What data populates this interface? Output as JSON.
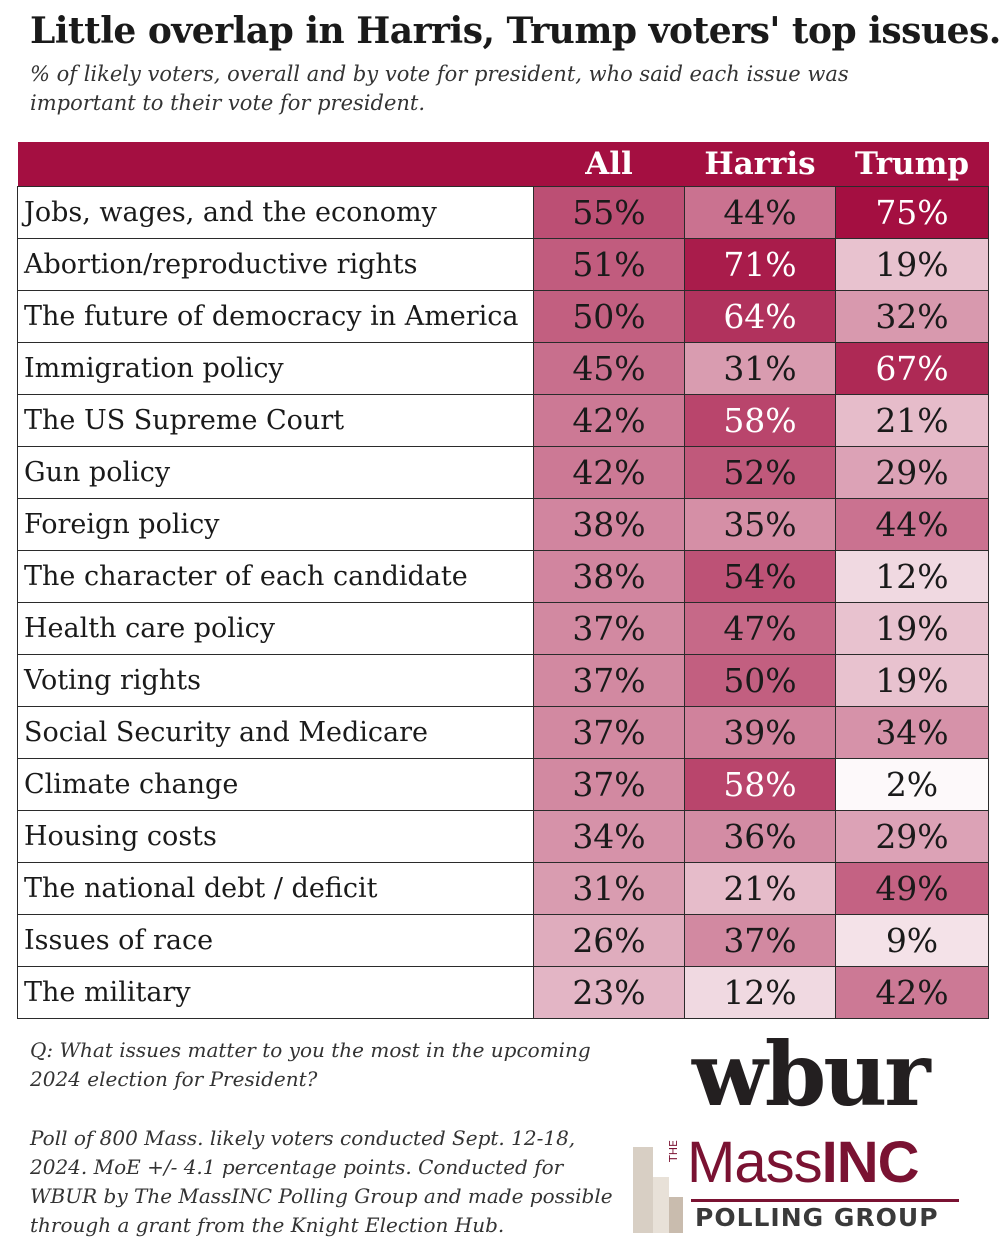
{
  "header": {
    "title": "Little overlap in Harris, Trump voters' top issues.",
    "subtitle": "% of likely voters, overall and by vote for president, who said each issue was important to their vote for president."
  },
  "chart_data": {
    "type": "table",
    "title": "Little overlap in Harris, Trump voters' top issues.",
    "subtitle": "% of likely voters, overall and by vote for president, who said each issue was important to their vote for president.",
    "columns": [
      "All",
      "Harris",
      "Trump"
    ],
    "rows": [
      {
        "issue": "Jobs, wages, and the economy",
        "values": [
          55,
          44,
          75
        ]
      },
      {
        "issue": "Abortion/reproductive rights",
        "values": [
          51,
          71,
          19
        ]
      },
      {
        "issue": "The future of democracy in America",
        "values": [
          50,
          64,
          32
        ]
      },
      {
        "issue": "Immigration policy",
        "values": [
          45,
          31,
          67
        ]
      },
      {
        "issue": "The US Supreme Court",
        "values": [
          42,
          58,
          21
        ]
      },
      {
        "issue": "Gun policy",
        "values": [
          42,
          52,
          29
        ]
      },
      {
        "issue": "Foreign policy",
        "values": [
          38,
          35,
          44
        ]
      },
      {
        "issue": "The character of each candidate",
        "values": [
          38,
          54,
          12
        ]
      },
      {
        "issue": "Health care policy",
        "values": [
          37,
          47,
          19
        ]
      },
      {
        "issue": "Voting rights",
        "values": [
          37,
          50,
          19
        ]
      },
      {
        "issue": "Social Security and Medicare",
        "values": [
          37,
          39,
          34
        ]
      },
      {
        "issue": "Climate change",
        "values": [
          37,
          58,
          2
        ]
      },
      {
        "issue": "Housing costs",
        "values": [
          34,
          36,
          29
        ]
      },
      {
        "issue": "The national debt / deficit",
        "values": [
          31,
          21,
          49
        ]
      },
      {
        "issue": "Issues of race",
        "values": [
          26,
          37,
          9
        ]
      },
      {
        "issue": "The military",
        "values": [
          23,
          12,
          42
        ]
      }
    ],
    "unit": "%",
    "color_scale": {
      "low": "#ffffff",
      "high": "#a40f41",
      "max": 75
    }
  },
  "colors": {
    "header_bg": "#a40f41",
    "brand": "#7a1232"
  },
  "notes": {
    "question": "Q: What issues matter to you the most in the upcoming 2024 election for President?",
    "poll": "Poll of 800 Mass. likely voters conducted Sept. 12-18, 2024. MoE +/- 4.1 percentage points. Conducted for WBUR by The MassINC Polling Group and made possible through a grant from the Knight Election Hub."
  },
  "logos": {
    "wbur": "wbur",
    "massinc_the": "THE",
    "massinc_mass": "Mass",
    "massinc_inc": "INC",
    "massinc_polling": "POLLING GROUP"
  }
}
